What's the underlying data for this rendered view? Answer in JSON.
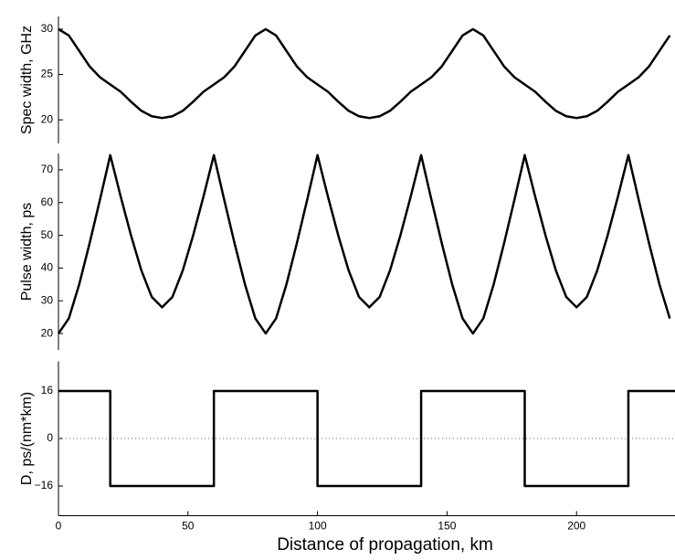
{
  "chart_data": [
    {
      "type": "line",
      "ylabel": "Spec width, GHz",
      "color": "#000000",
      "x": [
        0,
        4,
        8,
        12,
        16,
        20,
        24,
        28,
        32,
        36,
        40,
        44,
        48,
        52,
        56,
        60,
        64,
        68,
        72,
        76,
        80,
        84,
        88,
        92,
        96,
        100,
        104,
        108,
        112,
        116,
        120,
        124,
        128,
        132,
        136,
        140,
        144,
        148,
        152,
        156,
        160,
        164,
        168,
        172,
        176,
        180,
        184,
        188,
        192,
        196,
        200,
        204,
        208,
        212,
        216,
        220,
        224,
        228,
        232,
        236
      ],
      "values": [
        30,
        29.3,
        27.6,
        25.9,
        24.7,
        23.9,
        23.1,
        22.0,
        21.0,
        20.4,
        20.2,
        20.4,
        21.0,
        22.0,
        23.1,
        23.9,
        24.7,
        25.9,
        27.6,
        29.3,
        30,
        29.3,
        27.6,
        25.9,
        24.7,
        23.9,
        23.1,
        22.0,
        21.0,
        20.4,
        20.2,
        20.4,
        21.0,
        22.0,
        23.1,
        23.9,
        24.7,
        25.9,
        27.6,
        29.3,
        30,
        29.3,
        27.6,
        25.9,
        24.7,
        23.9,
        23.1,
        22.0,
        21.0,
        20.4,
        20.2,
        20.4,
        21.0,
        22.0,
        23.1,
        23.9,
        24.7,
        25.9,
        27.6,
        29.3
      ],
      "xlim": [
        0,
        238
      ],
      "ylim": [
        17.4,
        31.4
      ],
      "yticks": [
        20,
        25,
        30
      ]
    },
    {
      "type": "line",
      "ylabel": "Pulse width, ps",
      "color": "#000000",
      "x": [
        0,
        4,
        8,
        12,
        16,
        20,
        24,
        28,
        32,
        36,
        40,
        44,
        48,
        52,
        56,
        60,
        64,
        68,
        72,
        76,
        80,
        84,
        88,
        92,
        96,
        100,
        104,
        108,
        112,
        116,
        120,
        124,
        128,
        132,
        136,
        140,
        144,
        148,
        152,
        156,
        160,
        164,
        168,
        172,
        176,
        180,
        184,
        188,
        192,
        196,
        200,
        204,
        208,
        212,
        216,
        220,
        224,
        228,
        232,
        236
      ],
      "values": [
        20,
        24.6,
        35.0,
        47.5,
        60.8,
        74.5,
        61.9,
        50.0,
        39.3,
        31.2,
        28,
        31.2,
        39.3,
        50.0,
        61.9,
        74.5,
        60.8,
        47.5,
        35.0,
        24.6,
        20,
        24.6,
        35.0,
        47.5,
        60.8,
        74.5,
        61.9,
        50.0,
        39.3,
        31.2,
        28,
        31.2,
        39.3,
        50.0,
        61.9,
        74.5,
        60.8,
        47.5,
        35.0,
        24.6,
        20,
        24.6,
        35.0,
        47.5,
        60.8,
        74.5,
        61.9,
        50.0,
        39.3,
        31.2,
        28,
        31.2,
        39.3,
        50.0,
        61.9,
        74.5,
        60.8,
        47.5,
        35.0,
        24.6
      ],
      "xlim": [
        0,
        238
      ],
      "ylim": [
        15,
        75
      ],
      "yticks": [
        20,
        30,
        40,
        50,
        60,
        70
      ]
    },
    {
      "type": "line",
      "ylabel": "D, ps/(nm*km)",
      "xlabel": "Distance of propagation, km",
      "color": "#000000",
      "x": [
        0,
        20,
        20,
        60,
        60,
        100,
        100,
        140,
        140,
        180,
        180,
        220,
        220,
        238
      ],
      "values": [
        16,
        16,
        -16,
        -16,
        16,
        16,
        -16,
        -16,
        16,
        16,
        -16,
        -16,
        16,
        16
      ],
      "xlim": [
        0,
        238
      ],
      "ylim": [
        -26,
        26
      ],
      "yticks": [
        {
          "value": -16,
          "label": "−16"
        },
        0,
        16
      ],
      "xticks": [
        0,
        50,
        100,
        150,
        200
      ],
      "reference_line": 0
    }
  ]
}
